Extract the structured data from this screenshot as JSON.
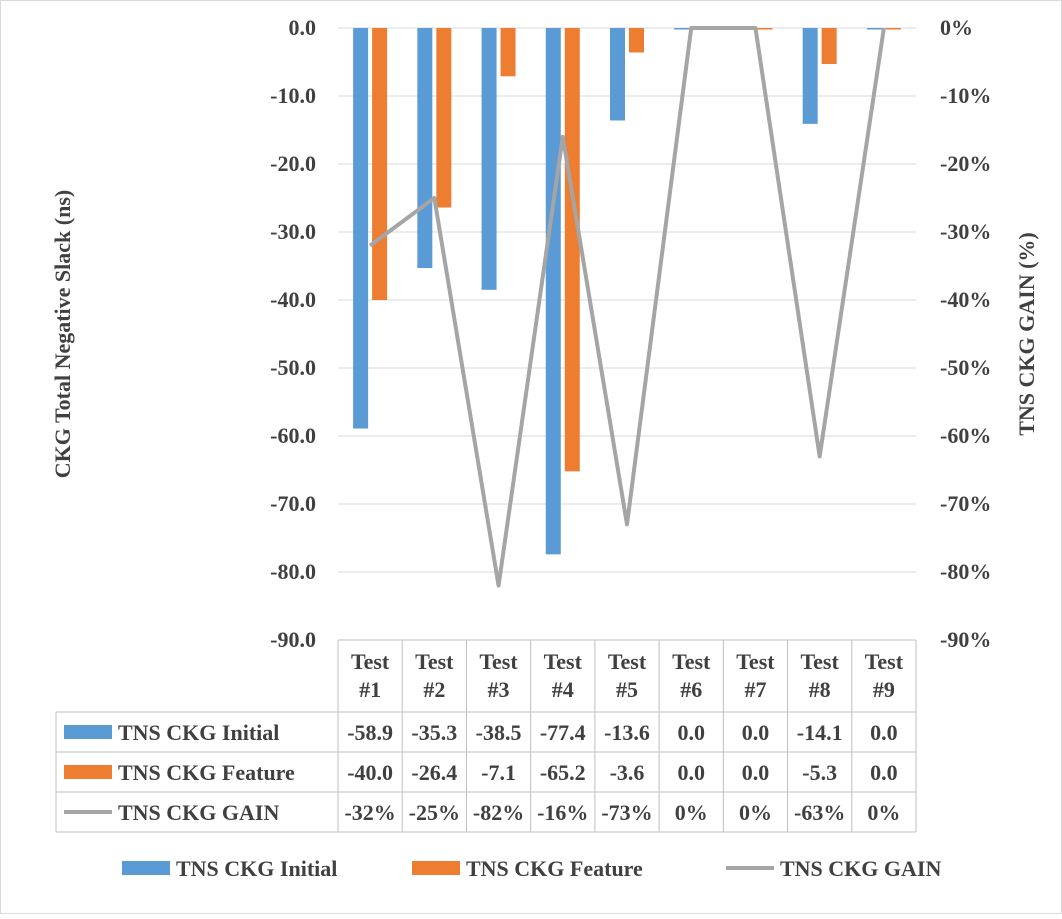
{
  "chart_data": {
    "type": "bar",
    "categories": [
      "Test #1",
      "Test #2",
      "Test #3",
      "Test #4",
      "Test #5",
      "Test #6",
      "Test #7",
      "Test #8",
      "Test #9"
    ],
    "category_lines": [
      [
        "Test",
        "#1"
      ],
      [
        "Test",
        "#2"
      ],
      [
        "Test",
        "#3"
      ],
      [
        "Test",
        "#4"
      ],
      [
        "Test",
        "#5"
      ],
      [
        "Test",
        "#6"
      ],
      [
        "Test",
        "#7"
      ],
      [
        "Test",
        "#8"
      ],
      [
        "Test",
        "#9"
      ]
    ],
    "series": [
      {
        "name": "TNS CKG Initial",
        "type": "bar",
        "axis": "left",
        "color": "#5B9BD5",
        "values": [
          -58.9,
          -35.3,
          -38.5,
          -77.4,
          -13.6,
          0.0,
          0.0,
          -14.1,
          0.0
        ],
        "table_values": [
          "-58.9",
          "-35.3",
          "-38.5",
          "-77.4",
          "-13.6",
          "0.0",
          "0.0",
          "-14.1",
          "0.0"
        ]
      },
      {
        "name": "TNS CKG Feature",
        "type": "bar",
        "axis": "left",
        "color": "#ED7D31",
        "values": [
          -40.0,
          -26.4,
          -7.1,
          -65.2,
          -3.6,
          0.0,
          0.0,
          -5.3,
          0.0
        ],
        "table_values": [
          "-40.0",
          "-26.4",
          "-7.1",
          "-65.2",
          "-3.6",
          "0.0",
          "0.0",
          "-5.3",
          "0.0"
        ]
      },
      {
        "name": "TNS CKG GAIN",
        "type": "line",
        "axis": "right",
        "color": "#A5A5A5",
        "values": [
          -32,
          -25,
          -82,
          -16,
          -73,
          0,
          0,
          -63,
          0
        ],
        "table_values": [
          "-32%",
          "-25%",
          "-82%",
          "-16%",
          "-73%",
          "0%",
          "0%",
          "-63%",
          "0%"
        ]
      }
    ],
    "ylabel": "CKG Total Negative Slack (ns)",
    "y2label": "TNS CKG GAIN (%)",
    "ylim": [
      -90,
      0
    ],
    "y2lim": [
      -90,
      0
    ],
    "yticks": [
      "0.0",
      "-10.0",
      "-20.0",
      "-30.0",
      "-40.0",
      "-50.0",
      "-60.0",
      "-70.0",
      "-80.0",
      "-90.0"
    ],
    "y2ticks": [
      "0%",
      "-10%",
      "-20%",
      "-30%",
      "-40%",
      "-50%",
      "-60%",
      "-70%",
      "-80%",
      "-90%"
    ],
    "grid": true,
    "legend_position": "bottom",
    "data_table": true
  }
}
